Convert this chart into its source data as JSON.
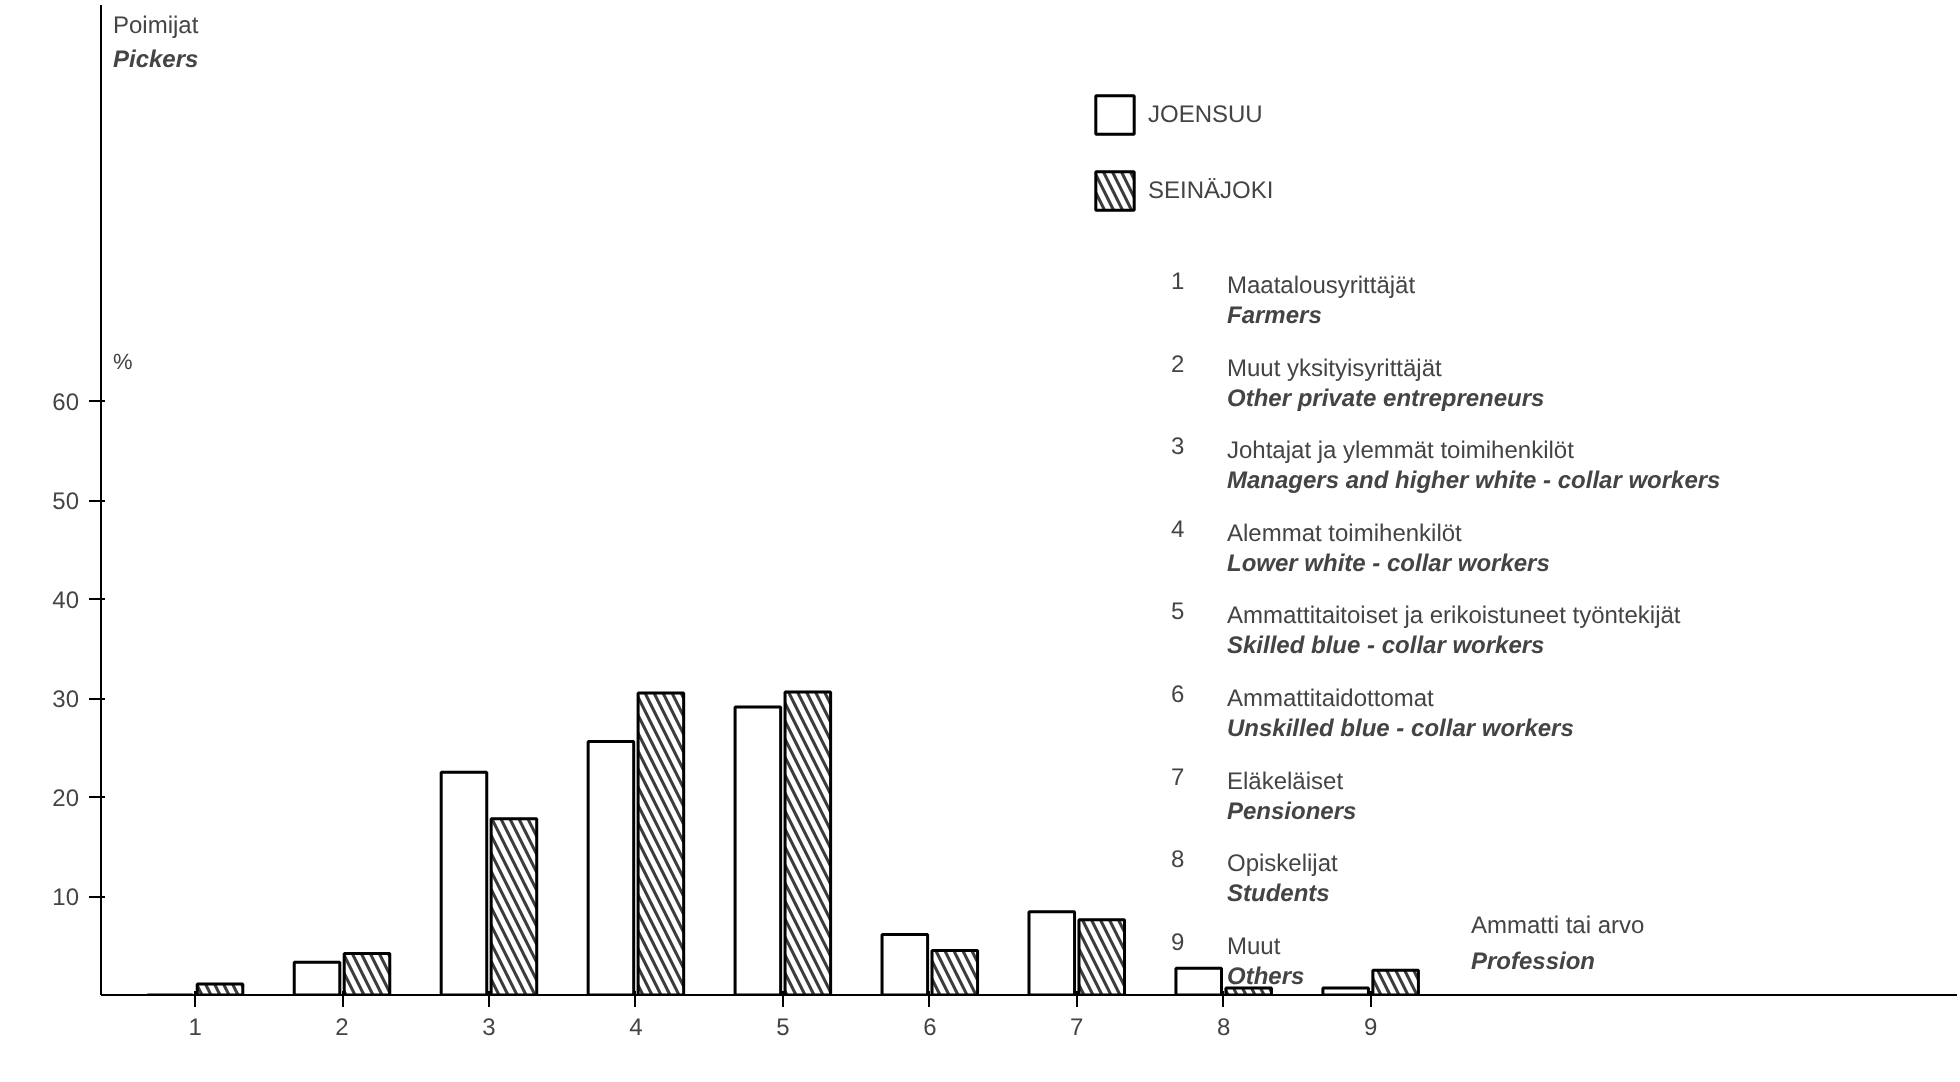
{
  "chart_data": {
    "type": "bar",
    "title": "Poimijat\nPickers",
    "ylabel": "%",
    "xlabel": "Ammatti tai arvo\nProfession",
    "categories": [
      "1",
      "2",
      "3",
      "4",
      "5",
      "6",
      "7",
      "8",
      "9"
    ],
    "series": [
      {
        "name": "JOENSUU",
        "color": "#000000",
        "values": [
          0,
          3.3,
          22.5,
          25.6,
          29.1,
          6.1,
          8.4,
          2.7,
          0.7
        ]
      },
      {
        "name": "SEINÄJOKI",
        "color": "#3c3c3c",
        "values": [
          1.1,
          4.2,
          17.8,
          30.5,
          30.6,
          4.5,
          7.6,
          0.7,
          2.5
        ]
      }
    ],
    "ylim": [
      0,
      100
    ],
    "yticks": [
      10,
      20,
      30,
      40,
      50,
      60
    ],
    "grid": false,
    "legend": "top right",
    "annotations": [
      "1 Maatalousyrittäjät\nFarmers",
      "2 Muut yksityisyrittäjät\nOther private entrepreneurs",
      "3 Johtajat ja ylemmät toimihenkilöt\nManagers and higher white - collar workers",
      "4 Alemmat toimihenkilöt\nLower white - collar workers",
      "5 Ammattitaitoiset ja erikoistuneet työntekijät\nSkilled blue - collar workers",
      "6 Ammattitaidottomat\nUnskilled blue - collar workers",
      "7 Eläkeläiset\nPensioners",
      "8 Opiskelijat\nStudents",
      "9 Muut\nOthers"
    ]
  }
}
